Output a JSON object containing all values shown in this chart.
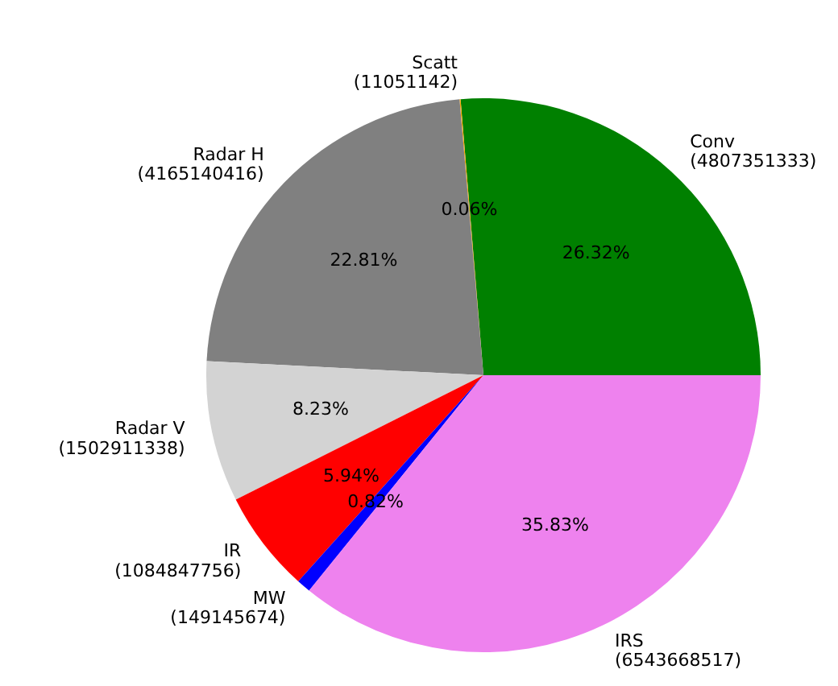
{
  "chart_data": {
    "type": "pie",
    "categories": [
      "Conv\n(4807351333)",
      "Scatt\n(11051142)",
      "Radar H\n(4165140416)",
      "Radar V\n(1502911338)",
      "IR\n(1084847756)",
      "MW\n(149145674)",
      "IRS\n(6543668517)"
    ],
    "values": [
      26.32,
      0.06,
      22.81,
      8.23,
      5.94,
      0.82,
      35.83
    ],
    "colors": [
      "#008000",
      "#ffa500",
      "#808080",
      "#d3d3d3",
      "#ff0000",
      "#0000ff",
      "#ee82ee"
    ],
    "value_labels": [
      "26.32%",
      "0.06%",
      "22.81%",
      "8.23%",
      "5.94%",
      "0.82%",
      "35.83%"
    ]
  }
}
